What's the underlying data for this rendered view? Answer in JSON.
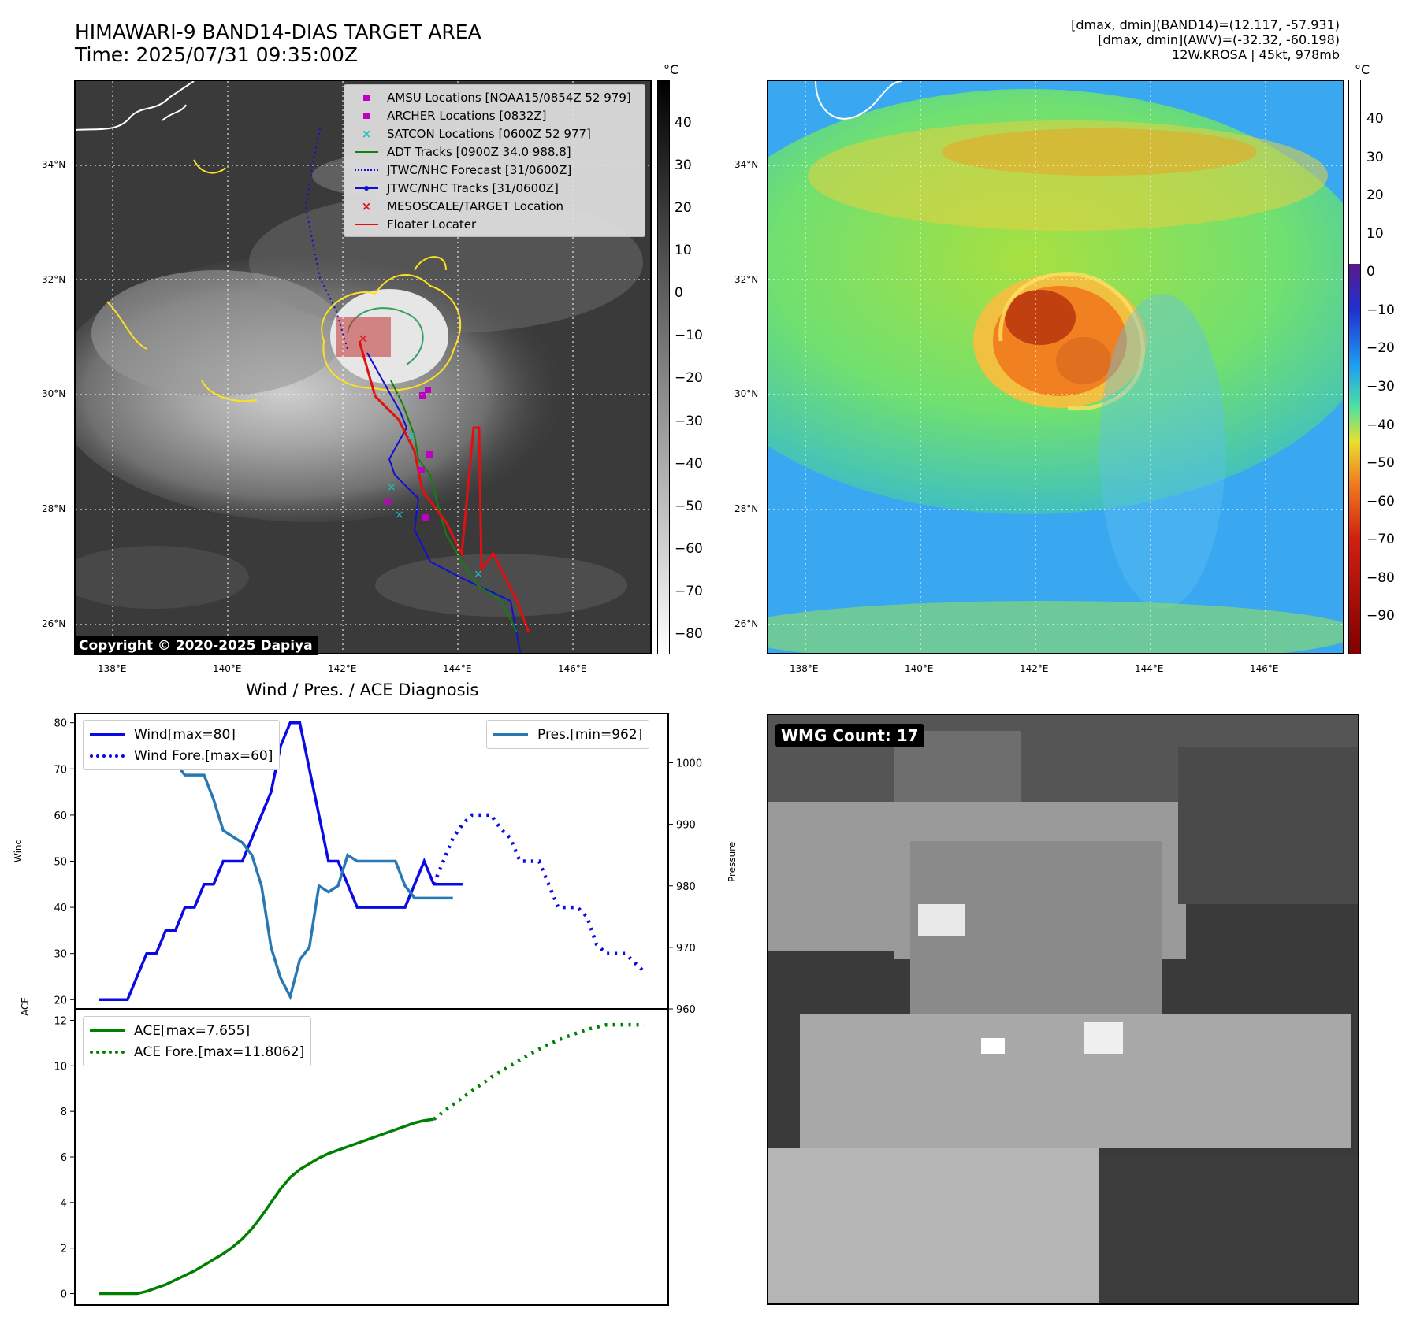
{
  "header": {
    "title_line1": "HIMAWARI-9 BAND14-DIAS TARGET AREA",
    "title_line2": "Time: 2025/07/31 09:35:00Z",
    "info_line1": "[dmax, dmin](BAND14)=(12.117, -57.931)",
    "info_line2": "[dmax, dmin](AWV)=(-32.32, -60.198)",
    "info_line3": "12W.KROSA | 45kt, 978mb"
  },
  "map_axes": {
    "lat_labels": [
      "34°N",
      "32°N",
      "30°N",
      "28°N",
      "26°N"
    ],
    "lon_labels": [
      "138°E",
      "140°E",
      "142°E",
      "144°E",
      "146°E"
    ]
  },
  "ir_panel": {
    "colorbar_unit": "°C",
    "colorbar_ticks": [
      "40",
      "30",
      "20",
      "10",
      "0",
      "−10",
      "−20",
      "−30",
      "−40",
      "−50",
      "−60",
      "−70",
      "−80"
    ],
    "copyright": "Copyright © 2020-2025 Dapiya",
    "legend": [
      {
        "label": "AMSU Locations [NOAA15/0854Z 52 979]",
        "symbol": "square",
        "color": "#c000c0"
      },
      {
        "label": "ARCHER Locations [0832Z]",
        "symbol": "square",
        "color": "#c000c0"
      },
      {
        "label": "SATCON Locations [0600Z 52 977]",
        "symbol": "x",
        "color": "#20c0c0"
      },
      {
        "label": "ADT Tracks [0900Z 34.0 988.8]",
        "symbol": "line",
        "color": "#108010"
      },
      {
        "label": "JTWC/NHC Forecast [31/0600Z]",
        "symbol": "dotted",
        "color": "#1010d0"
      },
      {
        "label": "JTWC/NHC Tracks [31/0600Z]",
        "symbol": "line-dot",
        "color": "#1010d0"
      },
      {
        "label": "MESOSCALE/TARGET Location",
        "symbol": "x",
        "color": "#e01010"
      },
      {
        "label": "Floater Locater",
        "symbol": "line",
        "color": "#e01010"
      }
    ]
  },
  "awv_panel": {
    "colorbar_unit": "°C",
    "colorbar_ticks": [
      "40",
      "30",
      "20",
      "10",
      "0",
      "−10",
      "−20",
      "−30",
      "−40",
      "−50",
      "−60",
      "−70",
      "−80",
      "−90"
    ]
  },
  "wmg_panel": {
    "label": "WMG Count: 17"
  },
  "colors": {
    "wind": "#0a0ae6",
    "pressure": "#2878b4",
    "ace": "#008000",
    "ir_bg": "#3c3c3c"
  },
  "chart_data": [
    {
      "type": "line",
      "title": "Wind / Pres. / ACE Diagnosis",
      "ylabel": "Wind",
      "ylabel_right": "Pressure",
      "ylim": [
        18,
        82
      ],
      "ylim_right": [
        960,
        1008
      ],
      "yticks": [
        "80",
        "70",
        "60",
        "50",
        "40",
        "30",
        "20"
      ],
      "yticks_right": [
        "1000",
        "990",
        "980",
        "970",
        "960"
      ],
      "series": [
        {
          "name": "Wind[max=80]",
          "style": "solid",
          "x": [
            0,
            1,
            2,
            3,
            4,
            5,
            6,
            7,
            8,
            9,
            10,
            11,
            12,
            13,
            14,
            15,
            16,
            17,
            18,
            19,
            20,
            21,
            22,
            23,
            24,
            25,
            26,
            27,
            28,
            29,
            30,
            31,
            32,
            33,
            34,
            35,
            36,
            37,
            38
          ],
          "values": [
            20,
            20,
            20,
            20,
            25,
            30,
            30,
            35,
            35,
            40,
            40,
            45,
            45,
            50,
            50,
            50,
            55,
            60,
            65,
            75,
            80,
            80,
            70,
            60,
            50,
            50,
            45,
            40,
            40,
            40,
            40,
            40,
            40,
            45,
            50,
            45,
            45,
            45,
            45
          ]
        },
        {
          "name": "Wind Fore.[max=60]",
          "style": "dotted",
          "x": [
            35,
            36,
            37,
            38,
            39,
            40,
            41,
            42,
            43,
            44,
            45,
            46,
            47,
            48,
            49,
            50,
            51,
            52,
            53,
            54,
            55,
            56,
            57
          ],
          "values": [
            45,
            50,
            55,
            58,
            60,
            60,
            60,
            57,
            55,
            50,
            50,
            50,
            45,
            40,
            40,
            40,
            38,
            32,
            30,
            30,
            30,
            28,
            26
          ]
        },
        {
          "name": "Pres.[min=962]",
          "style": "solid",
          "axis": "right",
          "x": [
            0,
            1,
            2,
            3,
            4,
            5,
            6,
            7,
            8,
            9,
            10,
            11,
            12,
            13,
            14,
            15,
            16,
            17,
            18,
            19,
            20,
            21,
            22,
            23,
            24,
            25,
            26,
            27,
            28,
            29,
            30,
            31,
            32,
            33,
            34,
            35,
            36,
            37
          ],
          "values": [
            1006,
            1006,
            1006,
            1004,
            1004,
            1003,
            1003,
            1000,
            1000,
            998,
            998,
            998,
            994,
            989,
            988,
            987,
            985,
            980,
            970,
            965,
            962,
            968,
            970,
            980,
            979,
            980,
            985,
            984,
            984,
            984,
            984,
            984,
            980,
            978,
            978,
            978,
            978,
            978
          ]
        }
      ]
    },
    {
      "type": "line",
      "ylabel": "ACE",
      "ylim": [
        -0.5,
        12.5
      ],
      "yticks": [
        "12",
        "10",
        "8",
        "6",
        "4",
        "2",
        "0"
      ],
      "series": [
        {
          "name": "ACE[max=7.655]",
          "style": "solid",
          "x": [
            0,
            2,
            4,
            5,
            6,
            7,
            8,
            9,
            10,
            11,
            12,
            13,
            14,
            15,
            16,
            17,
            18,
            19,
            20,
            21,
            22,
            23,
            24,
            25,
            26,
            27,
            28,
            29,
            30,
            31,
            32,
            33,
            34,
            35
          ],
          "values": [
            0,
            0,
            0,
            0.1,
            0.25,
            0.4,
            0.6,
            0.8,
            1.0,
            1.25,
            1.5,
            1.75,
            2.05,
            2.4,
            2.85,
            3.4,
            4.0,
            4.6,
            5.1,
            5.45,
            5.7,
            5.95,
            6.15,
            6.3,
            6.45,
            6.6,
            6.75,
            6.9,
            7.05,
            7.2,
            7.35,
            7.5,
            7.6,
            7.655
          ]
        },
        {
          "name": "ACE Fore.[max=11.8062]",
          "style": "dotted",
          "x": [
            35,
            37,
            39,
            41,
            43,
            45,
            47,
            49,
            51,
            53,
            55,
            57
          ],
          "values": [
            7.655,
            8.3,
            8.9,
            9.5,
            10.0,
            10.5,
            10.95,
            11.3,
            11.6,
            11.8,
            11.8062,
            11.8
          ]
        }
      ]
    }
  ]
}
